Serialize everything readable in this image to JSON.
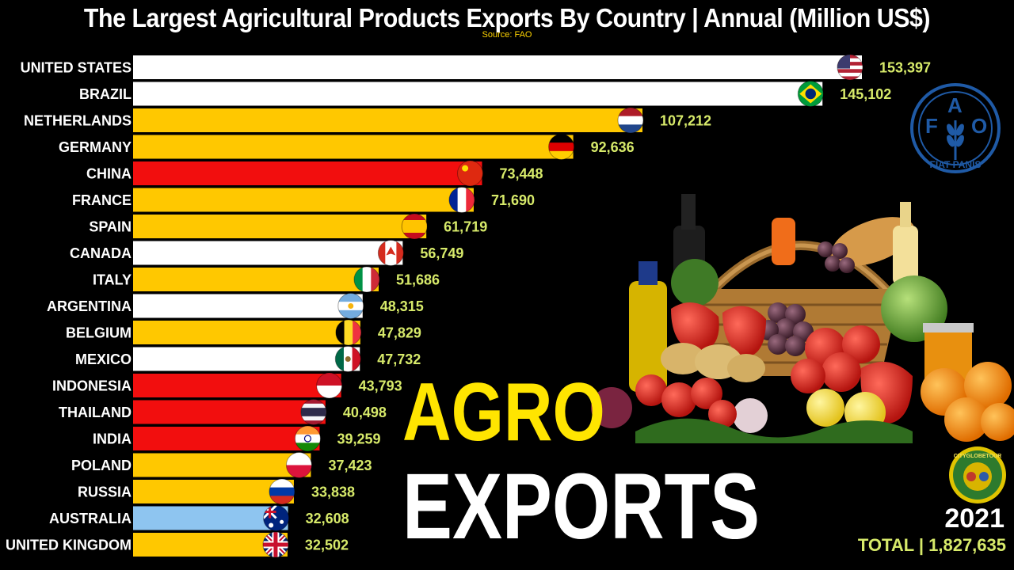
{
  "header": {
    "title": "The Largest Agricultural Products Exports By Country | Annual (Million US$)",
    "source": "Source: FAO"
  },
  "overlay": {
    "line1": "AGRO",
    "line2": "EXPORTS",
    "year": "2021",
    "total": "TOTAL | 1,827,635"
  },
  "logos": {
    "fao_letters": [
      "F",
      "A",
      "O"
    ],
    "fao_motto": "FIAT PANIS",
    "globe_text": "CITYGLOBETOUR"
  },
  "colors": {
    "background": "#000000",
    "white_bar": "#ffffff",
    "yellow_bar": "#ffc800",
    "red_bar": "#f20e0e",
    "lightblue_bar": "#8ec5f0",
    "value_text": "#d7ea6a",
    "agro_text": "#ffe500",
    "fao_blue": "#1f5aa6"
  },
  "chart_data": {
    "type": "bar",
    "orientation": "horizontal",
    "title": "The Largest Agricultural Products Exports By Country | Annual (Million US$)",
    "categories": [
      "UNITED STATES",
      "BRAZIL",
      "NETHERLANDS",
      "GERMANY",
      "CHINA",
      "FRANCE",
      "SPAIN",
      "CANADA",
      "ITALY",
      "ARGENTINA",
      "BELGIUM",
      "MEXICO",
      "INDONESIA",
      "THAILAND",
      "INDIA",
      "POLAND",
      "RUSSIA",
      "AUSTRALIA",
      "UNITED KINGDOM"
    ],
    "values": [
      153397,
      145102,
      107212,
      92636,
      73448,
      71690,
      61719,
      56749,
      51686,
      48315,
      47829,
      47732,
      43793,
      40498,
      39259,
      37423,
      33838,
      32608,
      32502
    ],
    "value_labels": [
      "153,397",
      "145,102",
      "107,212",
      "92,636",
      "73,448",
      "71,690",
      "61,719",
      "56,749",
      "51,686",
      "48,315",
      "47,829",
      "47,732",
      "43,793",
      "40,498",
      "39,259",
      "37,423",
      "33,838",
      "32,608",
      "32,502"
    ],
    "bar_colors": [
      "white",
      "white",
      "yellow",
      "yellow",
      "red",
      "yellow",
      "yellow",
      "white",
      "yellow",
      "white",
      "yellow",
      "white",
      "red",
      "red",
      "red",
      "yellow",
      "yellow",
      "lightblue",
      "yellow"
    ],
    "flags": [
      "us",
      "br",
      "nl",
      "de",
      "cn",
      "fr",
      "es",
      "ca",
      "it",
      "ar",
      "be",
      "mx",
      "id",
      "th",
      "in",
      "pl",
      "ru",
      "au",
      "gb"
    ],
    "xlim": [
      0,
      153397
    ],
    "xlabel": "",
    "ylabel": "",
    "grid": false,
    "legend": "none"
  }
}
